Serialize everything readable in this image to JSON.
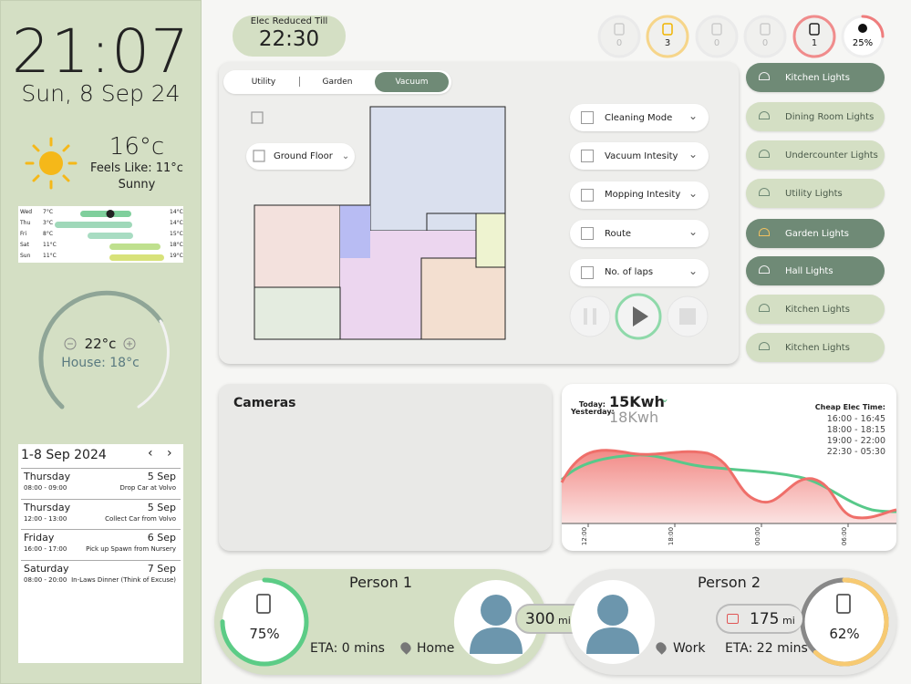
{
  "clock": {
    "time": "21:07",
    "date": "Sun, 8 Sep 24"
  },
  "weather": {
    "temp": "16°c",
    "feels": "Feels Like: 11°c",
    "condition": "Sunny",
    "forecast": [
      {
        "day": "Wed",
        "low": "7°C",
        "high": "14°C"
      },
      {
        "day": "Thu",
        "low": "3°C",
        "high": "14°C"
      },
      {
        "day": "Fri",
        "low": "8°C",
        "high": "15°C"
      },
      {
        "day": "Sat",
        "low": "11°C",
        "high": "18°C"
      },
      {
        "day": "Sun",
        "low": "11°C",
        "high": "19°C"
      }
    ]
  },
  "thermostat": {
    "setpoint": "22°c",
    "house": "House: 18°c"
  },
  "calendar": {
    "title": "1-8 Sep 2024",
    "events": [
      {
        "day": "Thursday",
        "date": "5 Sep",
        "time": "08:00 - 09:00",
        "text": "Drop Car at Volvo"
      },
      {
        "day": "Thursday",
        "date": "5 Sep",
        "time": "12:00 - 13:00",
        "text": "Collect Car from Volvo"
      },
      {
        "day": "Friday",
        "date": "6 Sep",
        "time": "16:00 - 17:00",
        "text": "Pick up Spawn from Nursery"
      },
      {
        "day": "Saturday",
        "date": "7 Sep",
        "time": "08:00 - 20:00",
        "text": "In-Laws Dinner (Think of Excuse)"
      }
    ]
  },
  "elec": {
    "label": "Elec Reduced Till",
    "time": "22:30"
  },
  "status": {
    "counts": [
      "0",
      "3",
      "0",
      "0",
      "1"
    ],
    "battery": {
      "value": 25,
      "label": "25%"
    }
  },
  "vacuum": {
    "tabs": [
      "Utility",
      "Garden",
      "Vacuum"
    ],
    "floor": "Ground Floor",
    "options": [
      "Cleaning Mode",
      "Vacuum Intesity",
      "Mopping Intesity",
      "Route",
      "No. of laps"
    ]
  },
  "lights": [
    {
      "name": "Kitchen Lights",
      "on": true
    },
    {
      "name": "Dining Room Lights",
      "on": false
    },
    {
      "name": "Undercounter Lights",
      "on": false
    },
    {
      "name": "Utility Lights",
      "on": false
    },
    {
      "name": "Garden Lights",
      "on": true
    },
    {
      "name": "Hall Lights",
      "on": true
    },
    {
      "name": "Kitchen Lights",
      "on": false
    },
    {
      "name": "Kitchen Lights",
      "on": false
    }
  ],
  "cameras": {
    "title": "Cameras"
  },
  "energy": {
    "today_label": "Today:",
    "today": "15Kwh",
    "yesterday_label": "Yesterday:",
    "yesterday": "18Kwh",
    "cheap_title": "Cheap Elec Time:",
    "cheap_times": [
      "16:00 - 16:45",
      "18:00 - 18:15",
      "19:00 - 22:00",
      "22:30 - 05:30"
    ],
    "x_labels": [
      "12:00",
      "18:00",
      "00:00",
      "06:00"
    ]
  },
  "persons": [
    {
      "name": "Person 1",
      "charge": {
        "value": 75,
        "label": "75%"
      },
      "distance": "300",
      "unit": "mi",
      "eta": "ETA: 0 mins",
      "location": "Home"
    },
    {
      "name": "Person 2",
      "charge": {
        "value": 62,
        "label": "62%"
      },
      "distance": "175",
      "unit": "mi",
      "eta": "ETA: 22 mins",
      "location": "Work"
    }
  ]
}
